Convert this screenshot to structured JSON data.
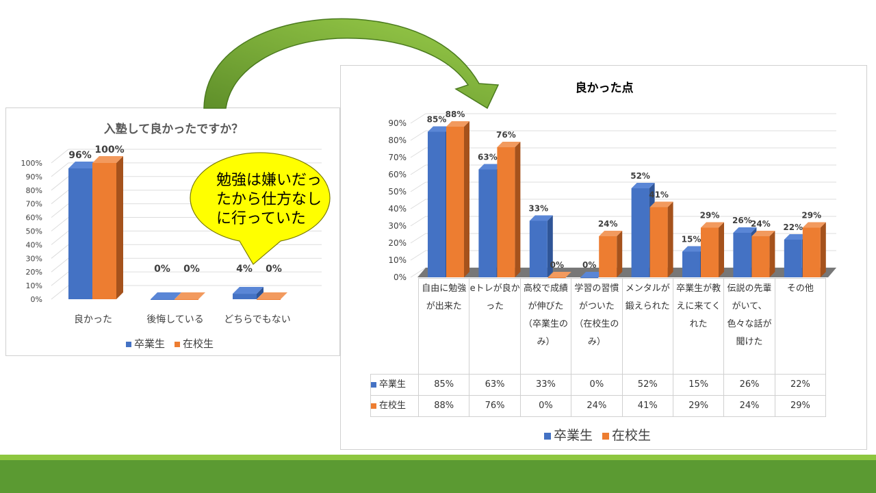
{
  "colors": {
    "blue": "#4472c4",
    "orange": "#ed7d31",
    "green": "#70ad47",
    "callout": "#ffff00"
  },
  "callout": {
    "lines": [
      "勉強は嫌いだっ",
      "たから仕方なし",
      "に行っていた"
    ]
  },
  "chart_data": [
    {
      "type": "bar",
      "title": "入塾して良かったですか？",
      "categories": [
        "良かった",
        "後悔している",
        "どちらでもない"
      ],
      "series": [
        {
          "name": "卒業生",
          "values": [
            96,
            0,
            4
          ],
          "labels": [
            "96%",
            "0%",
            "4%"
          ]
        },
        {
          "name": "在校生",
          "values": [
            100,
            0,
            0
          ],
          "labels": [
            "100%",
            "0%",
            "0%"
          ]
        }
      ],
      "ylim": [
        0,
        100
      ],
      "yticks": [
        "0%",
        "10%",
        "20%",
        "30%",
        "40%",
        "50%",
        "60%",
        "70%",
        "80%",
        "90%",
        "100%"
      ],
      "legend": "bottom",
      "grid": true
    },
    {
      "type": "bar",
      "title": "良かった点",
      "categories": [
        "自由に勉強が出来た",
        "eトレが良かった",
        "高校で成績が伸びた（卒業生のみ）",
        "学習の習慣がついた（在校生のみ）",
        "メンタルが鍛えられた",
        "卒業生が教えに来てくれた",
        "伝説の先輩がいて、色々な話が聞けた",
        "その他"
      ],
      "series": [
        {
          "name": "卒業生",
          "values": [
            85,
            63,
            33,
            0,
            52,
            15,
            26,
            22
          ],
          "labels": [
            "85%",
            "63%",
            "33%",
            "0%",
            "52%",
            "15%",
            "26%",
            "22%"
          ]
        },
        {
          "name": "在校生",
          "values": [
            88,
            76,
            0,
            24,
            41,
            29,
            24,
            29
          ],
          "labels": [
            "88%",
            "76%",
            "0%",
            "24%",
            "41%",
            "29%",
            "24%",
            "29%"
          ]
        }
      ],
      "ylim": [
        0,
        90
      ],
      "yticks": [
        "0%",
        "10%",
        "20%",
        "30%",
        "40%",
        "50%",
        "60%",
        "70%",
        "80%",
        "90%"
      ],
      "legend": "bottom",
      "grid": true,
      "data_table": true
    }
  ]
}
